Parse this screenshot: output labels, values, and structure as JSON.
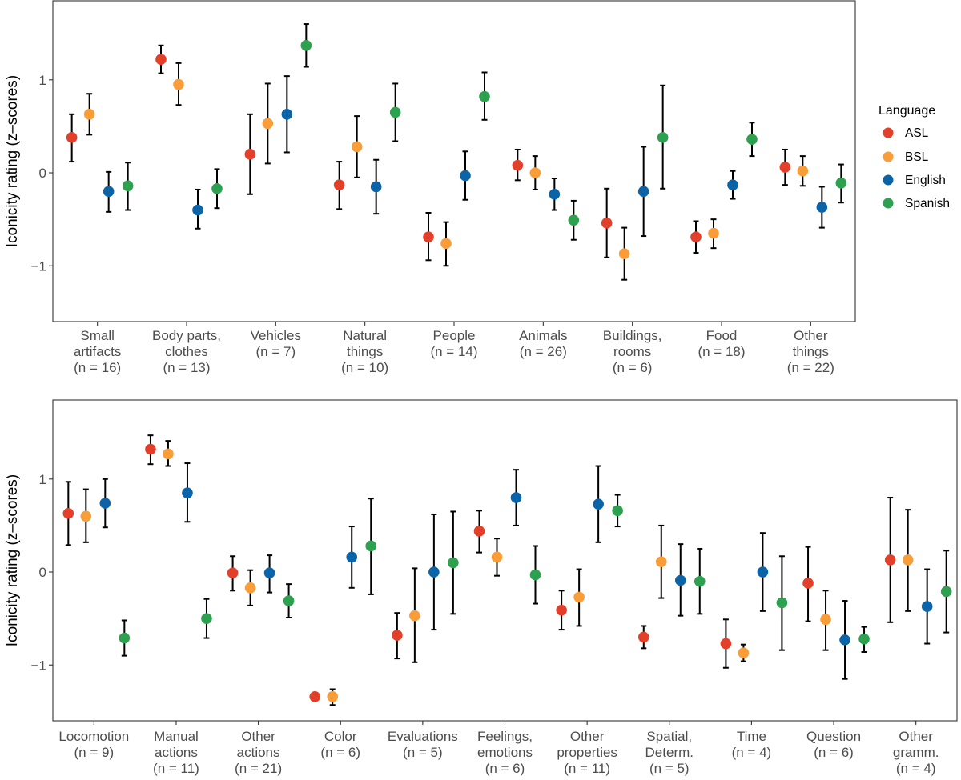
{
  "legend": {
    "title": "Language",
    "entries": [
      {
        "name": "ASL",
        "color": "#E2402B"
      },
      {
        "name": "BSL",
        "color": "#F99D38"
      },
      {
        "name": "English",
        "color": "#0B63A8"
      },
      {
        "name": "Spanish",
        "color": "#2EA150"
      }
    ]
  },
  "chart_data": [
    {
      "type": "scatter",
      "subtype": "point-with-errorbars",
      "ylabel": "Iconicity rating (z–scores)",
      "xlabel": "",
      "ylim": [
        -1.6,
        1.85
      ],
      "yticks": [
        -1,
        0,
        1
      ],
      "yticklabels": [
        "−1",
        "0",
        "1"
      ],
      "grid": false,
      "categories": [
        [
          "Small",
          "artifacts",
          "(n = 16)"
        ],
        [
          "Body parts,",
          "clothes",
          "(n = 13)"
        ],
        [
          "Vehicles",
          "(n = 7)"
        ],
        [
          "Natural",
          "things",
          "(n = 10)"
        ],
        [
          "People",
          "(n = 14)"
        ],
        [
          "Animals",
          "(n = 26)"
        ],
        [
          "Buildings,",
          "rooms",
          "(n = 6)"
        ],
        [
          "Food",
          "(n = 18)"
        ],
        [
          "Other",
          "things",
          "(n = 22)"
        ]
      ],
      "series": [
        {
          "name": "ASL",
          "values": [
            0.38,
            1.22,
            0.2,
            -0.13,
            -0.69,
            0.08,
            -0.54,
            -0.69,
            0.06
          ],
          "lower": [
            0.12,
            1.07,
            -0.23,
            -0.39,
            -0.94,
            -0.08,
            -0.91,
            -0.86,
            -0.13
          ],
          "upper": [
            0.63,
            1.37,
            0.63,
            0.12,
            -0.43,
            0.25,
            -0.17,
            -0.52,
            0.25
          ]
        },
        {
          "name": "BSL",
          "values": [
            0.63,
            0.95,
            0.53,
            0.28,
            -0.76,
            0.0,
            -0.87,
            -0.65,
            0.02
          ],
          "lower": [
            0.41,
            0.73,
            0.1,
            -0.05,
            -1.0,
            -0.18,
            -1.15,
            -0.81,
            -0.14
          ],
          "upper": [
            0.85,
            1.18,
            0.96,
            0.61,
            -0.53,
            0.18,
            -0.59,
            -0.5,
            0.18
          ]
        },
        {
          "name": "English",
          "values": [
            -0.2,
            -0.4,
            0.63,
            -0.15,
            -0.03,
            -0.23,
            -0.2,
            -0.13,
            -0.37
          ],
          "lower": [
            -0.42,
            -0.6,
            0.22,
            -0.44,
            -0.29,
            -0.4,
            -0.68,
            -0.28,
            -0.59
          ],
          "upper": [
            0.01,
            -0.18,
            1.04,
            0.14,
            0.23,
            -0.06,
            0.28,
            0.02,
            -0.15
          ]
        },
        {
          "name": "Spanish",
          "values": [
            -0.14,
            -0.17,
            1.37,
            0.65,
            0.82,
            -0.51,
            0.38,
            0.36,
            -0.11
          ],
          "lower": [
            -0.4,
            -0.38,
            1.14,
            0.34,
            0.57,
            -0.72,
            -0.17,
            0.18,
            -0.32
          ],
          "upper": [
            0.11,
            0.04,
            1.6,
            0.96,
            1.08,
            -0.3,
            0.94,
            0.54,
            0.09
          ]
        }
      ]
    },
    {
      "type": "scatter",
      "subtype": "point-with-errorbars",
      "ylabel": "Iconicity rating (z–scores)",
      "xlabel": "",
      "ylim": [
        -1.6,
        1.85
      ],
      "yticks": [
        -1,
        0,
        1
      ],
      "yticklabels": [
        "−1",
        "0",
        "1"
      ],
      "grid": false,
      "categories": [
        [
          "Locomotion",
          "(n = 9)"
        ],
        [
          "Manual",
          "actions",
          "(n = 11)"
        ],
        [
          "Other",
          "actions",
          "(n = 21)"
        ],
        [
          "Color",
          "(n = 6)"
        ],
        [
          "Evaluations",
          "(n = 5)"
        ],
        [
          "Feelings,",
          "emotions",
          "(n = 6)"
        ],
        [
          "Other",
          "properties",
          "(n = 11)"
        ],
        [
          "Spatial,",
          "Determ.",
          "(n = 5)"
        ],
        [
          "Time",
          "(n = 4)"
        ],
        [
          "Question",
          "(n = 6)"
        ],
        [
          "Other",
          "gramm.",
          "(n = 4)"
        ]
      ],
      "series": [
        {
          "name": "ASL",
          "values": [
            0.63,
            1.32,
            -0.01,
            -1.34,
            -0.68,
            0.44,
            -0.41,
            -0.7,
            -0.77,
            -0.12,
            0.13
          ],
          "lower": [
            0.29,
            1.16,
            -0.2,
            null,
            -0.93,
            0.21,
            -0.62,
            -0.82,
            -1.03,
            -0.53,
            -0.54
          ],
          "upper": [
            0.97,
            1.47,
            0.17,
            null,
            -0.44,
            0.66,
            -0.2,
            -0.58,
            -0.51,
            0.27,
            0.8
          ]
        },
        {
          "name": "BSL",
          "values": [
            0.6,
            1.27,
            -0.17,
            -1.34,
            -0.47,
            0.16,
            -0.27,
            0.11,
            -0.87,
            -0.51,
            0.13
          ],
          "lower": [
            0.32,
            1.14,
            -0.36,
            -1.43,
            -0.97,
            -0.04,
            -0.58,
            -0.28,
            -0.96,
            -0.84,
            -0.42
          ],
          "upper": [
            0.89,
            1.41,
            0.02,
            -1.26,
            0.04,
            0.36,
            0.03,
            0.5,
            -0.78,
            -0.2,
            0.67
          ]
        },
        {
          "name": "English",
          "values": [
            0.74,
            0.85,
            -0.01,
            0.16,
            0.0,
            0.8,
            0.73,
            -0.09,
            0.0,
            -0.73,
            -0.37
          ],
          "lower": [
            0.48,
            0.54,
            -0.22,
            -0.17,
            -0.62,
            0.5,
            0.32,
            -0.47,
            -0.42,
            -1.15,
            -0.77
          ],
          "upper": [
            1.0,
            1.17,
            0.18,
            0.49,
            0.62,
            1.1,
            1.14,
            0.3,
            0.42,
            -0.31,
            0.03
          ]
        },
        {
          "name": "Spanish",
          "values": [
            -0.71,
            -0.5,
            -0.31,
            0.28,
            0.1,
            -0.03,
            0.66,
            -0.1,
            -0.33,
            -0.72,
            -0.21
          ],
          "lower": [
            -0.9,
            -0.71,
            -0.49,
            -0.24,
            -0.45,
            -0.34,
            0.49,
            -0.45,
            -0.84,
            -0.86,
            -0.65
          ],
          "upper": [
            -0.52,
            -0.29,
            -0.13,
            0.79,
            0.65,
            0.28,
            0.83,
            0.25,
            0.17,
            -0.59,
            0.23
          ]
        }
      ]
    }
  ]
}
